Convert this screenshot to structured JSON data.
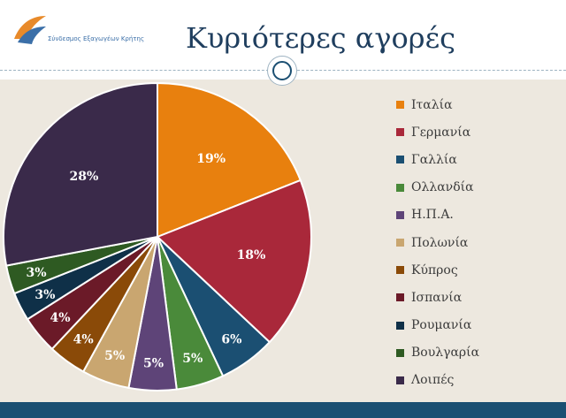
{
  "header": {
    "logo_text": "Σύνδεσμος Εξαγωγέων Κρήτης",
    "title": "Κυριότερες αγορές"
  },
  "chart_data": {
    "type": "pie",
    "title": "Κυριότερες αγορές",
    "start": "12 o'clock, clockwise",
    "legend_position": "right",
    "slices": [
      {
        "name": "Ιταλία",
        "value": 19,
        "label": "19%",
        "color": "#e8800e"
      },
      {
        "name": "Γερμανία",
        "value": 18,
        "label": "18%",
        "color": "#a9283a"
      },
      {
        "name": "Γαλλία",
        "value": 6,
        "label": "6%",
        "color": "#1b4f72"
      },
      {
        "name": "Ολλανδία",
        "value": 5,
        "label": "5%",
        "color": "#4a8a3a"
      },
      {
        "name": "Η.Π.Α.",
        "value": 5,
        "label": "5%",
        "color": "#5e4478"
      },
      {
        "name": "Πολωνία",
        "value": 5,
        "label": "5%",
        "color": "#c9a670"
      },
      {
        "name": "Κύπρος",
        "value": 4,
        "label": "4%",
        "color": "#8a4a08"
      },
      {
        "name": "Ισπανία",
        "value": 4,
        "label": "4%",
        "color": "#6b1a28"
      },
      {
        "name": "Ρουμανία",
        "value": 3,
        "label": "3%",
        "color": "#0f3048"
      },
      {
        "name": "Βουλγαρία",
        "value": 3,
        "label": "3%",
        "color": "#2e5a22"
      },
      {
        "name": "Λοιπές",
        "value": 28,
        "label": "28%",
        "color": "#3a2a4a"
      }
    ]
  }
}
